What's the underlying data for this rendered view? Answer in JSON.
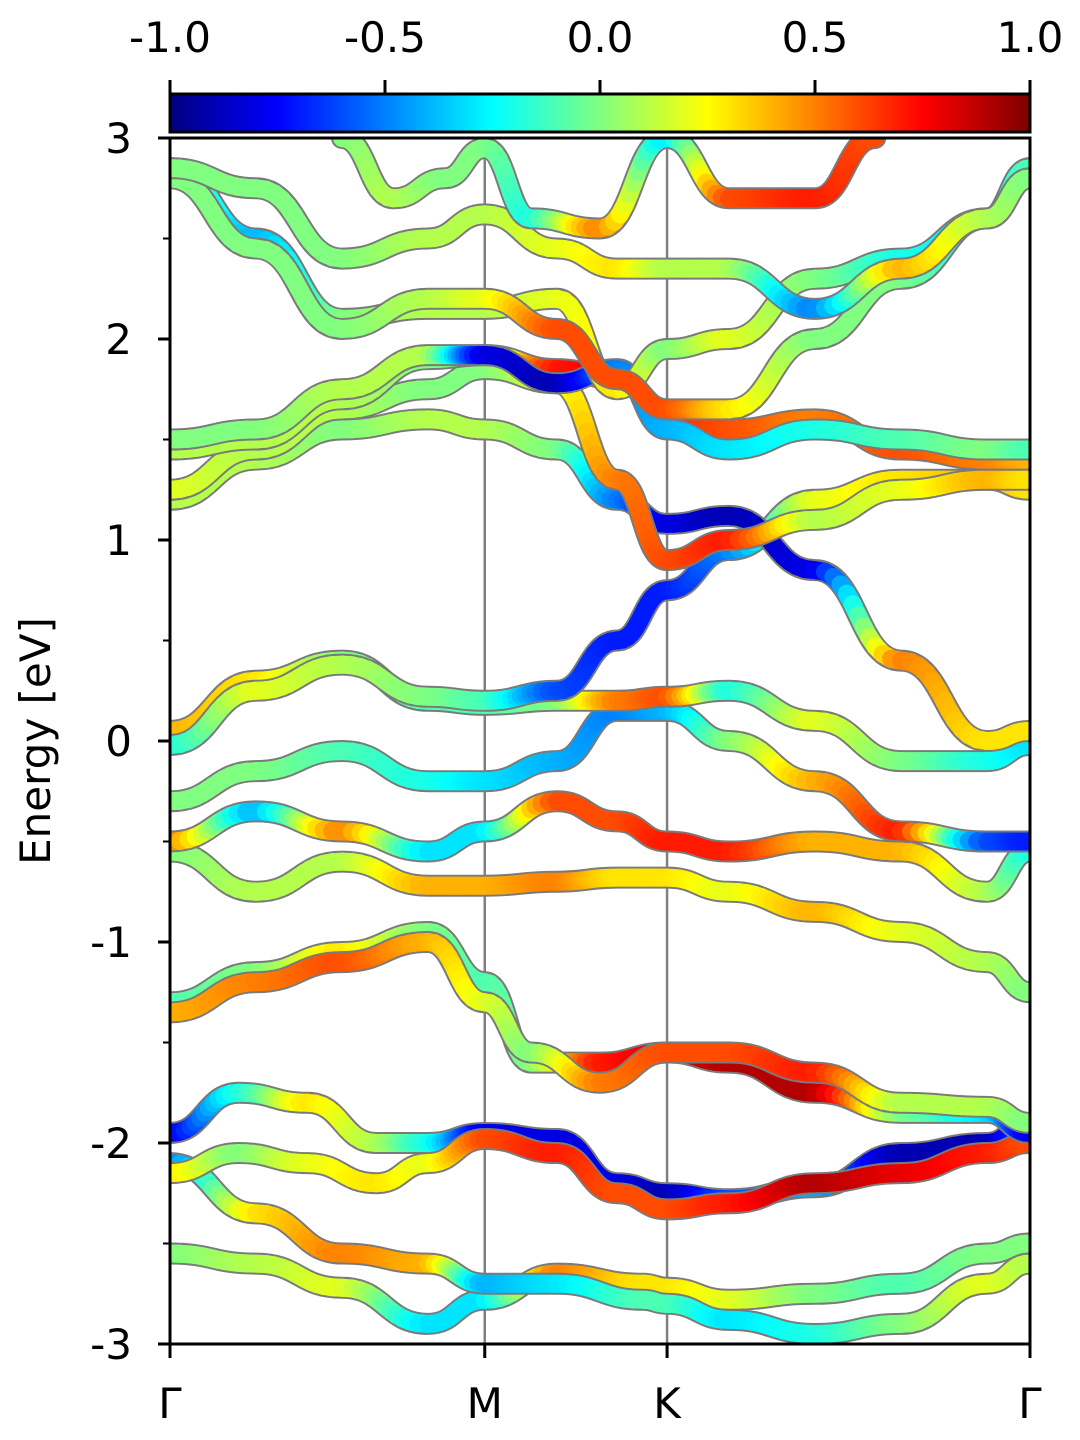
{
  "chart_data": {
    "type": "line",
    "ylabel": "Energy [eV]",
    "xlabel": "",
    "title": "",
    "ylim": [
      -3,
      3
    ],
    "y_ticks": [
      3,
      2,
      1,
      0,
      -1,
      -2,
      -3
    ],
    "y_tick_labels": [
      "3",
      "2",
      "1",
      "0",
      "-1",
      "-2",
      "-3"
    ],
    "k_points": [
      {
        "label": "Γ",
        "x": 0
      },
      {
        "label": "M",
        "x": 0.366
      },
      {
        "label": "K",
        "x": 0.578
      },
      {
        "label": "Γ",
        "x": 1
      }
    ],
    "colorbar": {
      "min": -1.0,
      "max": 1.0,
      "tick_values": [
        -1.0,
        -0.5,
        0.0,
        0.5,
        1.0
      ],
      "tick_labels": [
        "-1.0",
        "-0.5",
        "0.0",
        "0.5",
        "1.0"
      ],
      "colormap": "jet"
    },
    "series": [
      {
        "x": [
          0,
          0.1,
          0.2,
          0.3,
          0.366,
          0.45,
          0.55,
          0.578,
          0.65,
          0.75,
          0.85,
          0.95,
          1
        ],
        "y": [
          -2.55,
          -2.6,
          -2.72,
          -2.9,
          -2.78,
          -2.65,
          -2.7,
          -2.72,
          -2.78,
          -2.75,
          -2.7,
          -2.55,
          -2.5
        ],
        "c": [
          0.0,
          0.1,
          0.2,
          -0.3,
          -0.3,
          0.5,
          0.3,
          0.3,
          0.2,
          0.0,
          -0.1,
          0.0,
          0.0
        ]
      },
      {
        "x": [
          0,
          0.1,
          0.2,
          0.3,
          0.366,
          0.45,
          0.55,
          0.578,
          0.65,
          0.75,
          0.85,
          0.95,
          1
        ],
        "y": [
          -2.1,
          -2.35,
          -2.55,
          -2.6,
          -2.7,
          -2.7,
          -2.78,
          -2.8,
          -2.88,
          -2.95,
          -2.9,
          -2.7,
          -2.6
        ],
        "c": [
          -0.5,
          0.3,
          0.5,
          0.4,
          -0.4,
          -0.3,
          -0.1,
          -0.1,
          -0.3,
          -0.2,
          0.0,
          0.2,
          0.1
        ]
      },
      {
        "x": [
          0,
          0.08,
          0.16,
          0.24,
          0.3,
          0.366,
          0.45,
          0.52,
          0.578,
          0.65,
          0.75,
          0.85,
          0.95,
          1
        ],
        "y": [
          -1.95,
          -1.75,
          -1.8,
          -2.0,
          -2.0,
          -1.95,
          -1.98,
          -2.2,
          -2.25,
          -2.28,
          -2.22,
          -2.05,
          -2.0,
          -1.9
        ],
        "c": [
          -0.8,
          -0.2,
          0.3,
          0.1,
          -0.2,
          -0.8,
          -0.8,
          -0.8,
          -0.9,
          -0.6,
          -0.4,
          -0.9,
          -0.9,
          -0.6
        ]
      },
      {
        "x": [
          0,
          0.08,
          0.16,
          0.24,
          0.3,
          0.366,
          0.45,
          0.52,
          0.578,
          0.65,
          0.75,
          0.85,
          0.95,
          1
        ],
        "y": [
          -2.15,
          -2.05,
          -2.1,
          -2.2,
          -2.1,
          -1.98,
          -2.05,
          -2.25,
          -2.33,
          -2.3,
          -2.2,
          -2.15,
          -2.05,
          -2.0
        ],
        "c": [
          0.3,
          0.0,
          0.2,
          0.3,
          0.2,
          0.6,
          0.7,
          0.6,
          0.6,
          0.7,
          0.9,
          0.8,
          0.7,
          0.6
        ]
      },
      {
        "x": [
          0,
          0.1,
          0.2,
          0.3,
          0.366,
          0.42,
          0.5,
          0.578,
          0.65,
          0.75,
          0.85,
          0.95,
          1
        ],
        "y": [
          -1.3,
          -1.15,
          -1.05,
          -0.95,
          -1.2,
          -1.6,
          -1.6,
          -1.55,
          -1.6,
          -1.75,
          -1.85,
          -1.85,
          -1.95
        ],
        "c": [
          -0.1,
          0.0,
          0.3,
          0.0,
          -0.1,
          0.0,
          0.7,
          0.8,
          0.9,
          0.9,
          0.0,
          -0.3,
          -0.8
        ]
      },
      {
        "x": [
          0,
          0.1,
          0.2,
          0.3,
          0.366,
          0.42,
          0.5,
          0.578,
          0.65,
          0.75,
          0.85,
          0.95,
          1
        ],
        "y": [
          -1.35,
          -1.2,
          -1.1,
          -1.0,
          -1.3,
          -1.55,
          -1.7,
          -1.55,
          -1.55,
          -1.65,
          -1.8,
          -1.82,
          -1.9
        ],
        "c": [
          0.4,
          0.5,
          0.6,
          0.4,
          0.2,
          0.0,
          0.5,
          0.6,
          0.6,
          0.7,
          0.1,
          0.1,
          0.0
        ]
      },
      {
        "x": [
          0,
          0.1,
          0.2,
          0.3,
          0.366,
          0.45,
          0.52,
          0.578,
          0.65,
          0.75,
          0.85,
          0.95,
          1
        ],
        "y": [
          -0.55,
          -0.75,
          -0.6,
          -0.72,
          -0.72,
          -0.7,
          -0.68,
          -0.68,
          -0.75,
          -0.85,
          -0.95,
          -1.1,
          -1.25
        ],
        "c": [
          0.0,
          0.1,
          0.1,
          0.4,
          0.4,
          0.5,
          0.3,
          0.3,
          0.2,
          0.4,
          0.2,
          0.1,
          0.0
        ]
      },
      {
        "x": [
          0,
          0.1,
          0.2,
          0.3,
          0.366,
          0.45,
          0.52,
          0.578,
          0.65,
          0.75,
          0.85,
          0.95,
          1
        ],
        "y": [
          -0.5,
          -0.35,
          -0.45,
          -0.55,
          -0.45,
          -0.3,
          -0.4,
          -0.5,
          -0.55,
          -0.5,
          -0.55,
          -0.75,
          -0.55
        ],
        "c": [
          0.5,
          -0.4,
          0.5,
          -0.3,
          -0.3,
          0.6,
          0.6,
          0.7,
          0.7,
          0.4,
          0.4,
          0.1,
          -0.2
        ]
      },
      {
        "x": [
          0,
          0.1,
          0.2,
          0.3,
          0.366,
          0.45,
          0.52,
          0.578,
          0.65,
          0.75,
          0.85,
          0.95,
          1
        ],
        "y": [
          -0.3,
          -0.15,
          -0.05,
          -0.2,
          -0.2,
          -0.1,
          0.15,
          0.15,
          0.0,
          -0.2,
          -0.45,
          -0.5,
          -0.5
        ],
        "c": [
          0.0,
          0.0,
          -0.1,
          -0.2,
          -0.3,
          -0.4,
          -0.5,
          -0.4,
          0.0,
          0.4,
          0.7,
          -0.6,
          -0.7
        ]
      },
      {
        "x": [
          0,
          0.1,
          0.2,
          0.3,
          0.366,
          0.45,
          0.52,
          0.578,
          0.65,
          0.75,
          0.85,
          0.95,
          1
        ],
        "y": [
          0.05,
          0.3,
          0.4,
          0.2,
          0.18,
          0.2,
          0.2,
          0.22,
          0.25,
          0.1,
          -0.1,
          -0.1,
          -0.02
        ],
        "c": [
          0.4,
          0.3,
          0.0,
          -0.1,
          -0.1,
          0.0,
          0.5,
          0.6,
          -0.2,
          0.2,
          0.0,
          -0.2,
          -0.3
        ]
      },
      {
        "x": [
          0,
          0.1,
          0.2,
          0.3,
          0.366,
          0.45,
          0.52,
          0.578,
          0.65,
          0.75,
          0.85,
          0.95,
          1
        ],
        "y": [
          -0.02,
          0.25,
          0.38,
          0.22,
          0.2,
          0.25,
          0.5,
          0.75,
          0.95,
          1.2,
          1.3,
          1.3,
          1.25
        ],
        "c": [
          -0.2,
          0.2,
          0.1,
          0.0,
          -0.1,
          -0.6,
          -0.7,
          -0.7,
          -0.5,
          0.2,
          0.3,
          0.4,
          0.3
        ]
      },
      {
        "x": [
          0,
          0.1,
          0.2,
          0.3,
          0.366,
          0.45,
          0.52,
          0.578,
          0.65,
          0.75,
          0.85,
          0.95,
          1
        ],
        "y": [
          1.2,
          1.4,
          1.55,
          1.6,
          1.55,
          1.45,
          1.2,
          1.08,
          1.12,
          0.85,
          0.4,
          0.0,
          0.05
        ],
        "c": [
          0.1,
          0.1,
          0.0,
          0.1,
          0.1,
          0.0,
          -0.5,
          -0.8,
          -0.9,
          -0.8,
          0.5,
          0.3,
          0.3
        ]
      },
      {
        "x": [
          0,
          0.1,
          0.2,
          0.3,
          0.366,
          0.45,
          0.52,
          0.578,
          0.65,
          0.75,
          0.85,
          0.95,
          1
        ],
        "y": [
          1.25,
          1.45,
          1.65,
          1.75,
          1.85,
          1.78,
          1.3,
          0.9,
          1.0,
          1.1,
          1.25,
          1.3,
          1.3
        ],
        "c": [
          0.2,
          0.1,
          0.1,
          0.0,
          0.0,
          0.2,
          0.5,
          0.6,
          0.7,
          0.1,
          0.2,
          0.4,
          0.3
        ]
      },
      {
        "x": [
          0,
          0.1,
          0.2,
          0.3,
          0.366,
          0.45,
          0.52,
          0.578,
          0.65,
          0.75,
          0.85,
          0.95,
          1
        ],
        "y": [
          1.45,
          1.5,
          1.7,
          1.9,
          1.92,
          1.85,
          1.8,
          1.65,
          1.55,
          1.6,
          1.45,
          1.4,
          1.4
        ],
        "c": [
          0.1,
          0.1,
          0.1,
          0.0,
          0.0,
          0.7,
          0.8,
          0.7,
          0.6,
          0.5,
          0.6,
          0.5,
          0.4
        ]
      },
      {
        "x": [
          0,
          0.1,
          0.2,
          0.3,
          0.366,
          0.45,
          0.52,
          0.578,
          0.65,
          0.75,
          0.85,
          0.95,
          1
        ],
        "y": [
          1.5,
          1.55,
          1.75,
          1.92,
          1.92,
          1.78,
          1.85,
          1.55,
          1.45,
          1.55,
          1.5,
          1.45,
          1.45
        ],
        "c": [
          0.0,
          0.0,
          0.1,
          0.1,
          -0.8,
          -0.9,
          -0.5,
          -0.4,
          -0.3,
          -0.2,
          -0.1,
          0.0,
          -0.1
        ]
      },
      {
        "x": [
          0,
          0.1,
          0.2,
          0.3,
          0.366,
          0.45,
          0.52,
          0.578,
          0.65,
          0.75,
          0.85,
          0.95,
          1
        ],
        "y": [
          2.85,
          2.5,
          2.1,
          2.15,
          2.15,
          2.2,
          1.75,
          1.95,
          2.0,
          2.3,
          2.4,
          2.6,
          2.8
        ],
        "c": [
          0.0,
          -0.4,
          0.0,
          0.1,
          0.1,
          0.2,
          0.3,
          0.0,
          0.2,
          0.0,
          -0.2,
          -0.3,
          0.0
        ]
      },
      {
        "x": [
          0,
          0.1,
          0.2,
          0.3,
          0.366,
          0.45,
          0.52,
          0.578,
          0.65,
          0.75,
          0.85,
          0.95,
          1
        ],
        "y": [
          2.8,
          2.45,
          2.05,
          2.2,
          2.2,
          2.05,
          1.8,
          1.65,
          1.65,
          2.0,
          2.3,
          2.6,
          2.85
        ],
        "c": [
          0.0,
          0.0,
          0.0,
          0.1,
          0.2,
          0.6,
          0.6,
          0.6,
          0.3,
          0.0,
          0.0,
          -0.3,
          -0.1
        ]
      },
      {
        "x": [
          0,
          0.1,
          0.2,
          0.3,
          0.366,
          0.45,
          0.52,
          0.578,
          0.65,
          0.75,
          0.85,
          0.95,
          1
        ],
        "y": [
          2.85,
          2.75,
          2.4,
          2.5,
          2.62,
          2.45,
          2.35,
          2.35,
          2.35,
          2.15,
          2.35,
          2.6,
          2.8
        ],
        "c": [
          0.0,
          0.0,
          0.0,
          0.1,
          0.1,
          0.2,
          0.3,
          0.1,
          0.1,
          -0.5,
          0.4,
          0.1,
          0.0
        ]
      },
      {
        "x": [
          0.2,
          0.26,
          0.32,
          0.366,
          0.42,
          0.5,
          0.578,
          0.65,
          0.75,
          0.82
        ],
        "y": [
          3.0,
          2.7,
          2.8,
          2.95,
          2.6,
          2.55,
          3.0,
          2.7,
          2.7,
          3.0
        ],
        "c": [
          0.0,
          0.1,
          0.0,
          0.0,
          -0.2,
          0.5,
          -0.3,
          0.6,
          0.7,
          0.6
        ]
      }
    ]
  }
}
